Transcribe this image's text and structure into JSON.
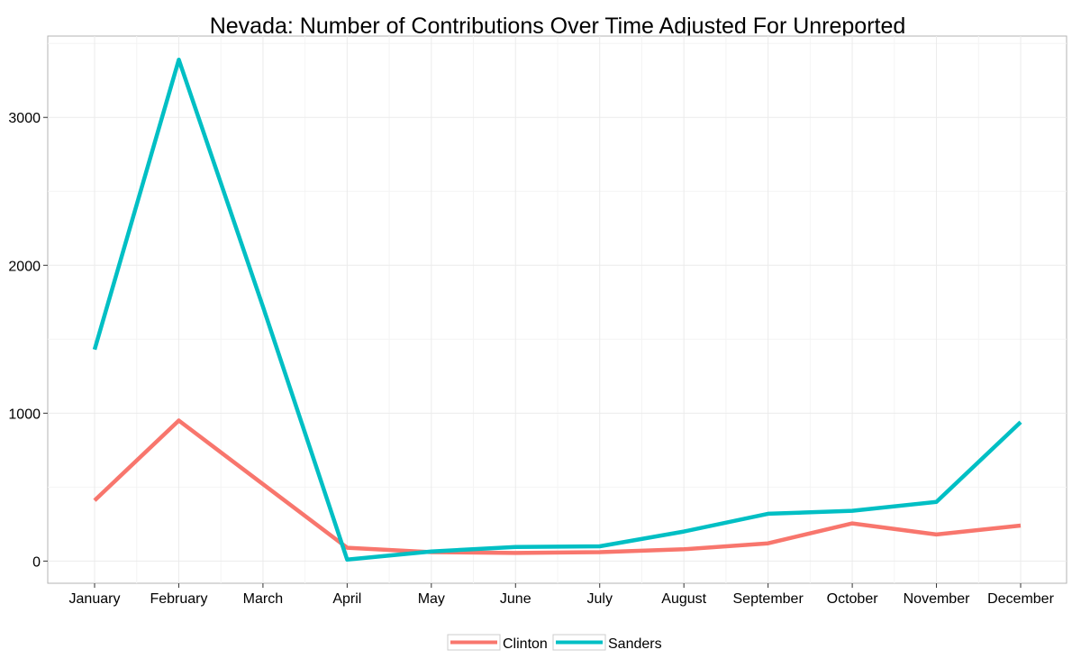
{
  "chart_data": {
    "type": "line",
    "title": "Nevada: Number of Contributions Over Time Adjusted For Unreported",
    "xlabel": "",
    "ylabel": "",
    "categories": [
      "January",
      "February",
      "March",
      "April",
      "May",
      "June",
      "July",
      "August",
      "September",
      "October",
      "November",
      "December"
    ],
    "ylim": [
      -150,
      3550
    ],
    "yticks": [
      0,
      1000,
      2000,
      3000
    ],
    "grid": true,
    "legend_position": "bottom",
    "series": [
      {
        "name": "Clinton",
        "color": "#F8766D",
        "values": [
          410,
          950,
          520,
          90,
          60,
          55,
          60,
          80,
          120,
          255,
          180,
          240
        ]
      },
      {
        "name": "Sanders",
        "color": "#00BFC4",
        "values": [
          1430,
          3390,
          1720,
          10,
          65,
          95,
          100,
          200,
          320,
          340,
          400,
          940
        ]
      }
    ]
  }
}
